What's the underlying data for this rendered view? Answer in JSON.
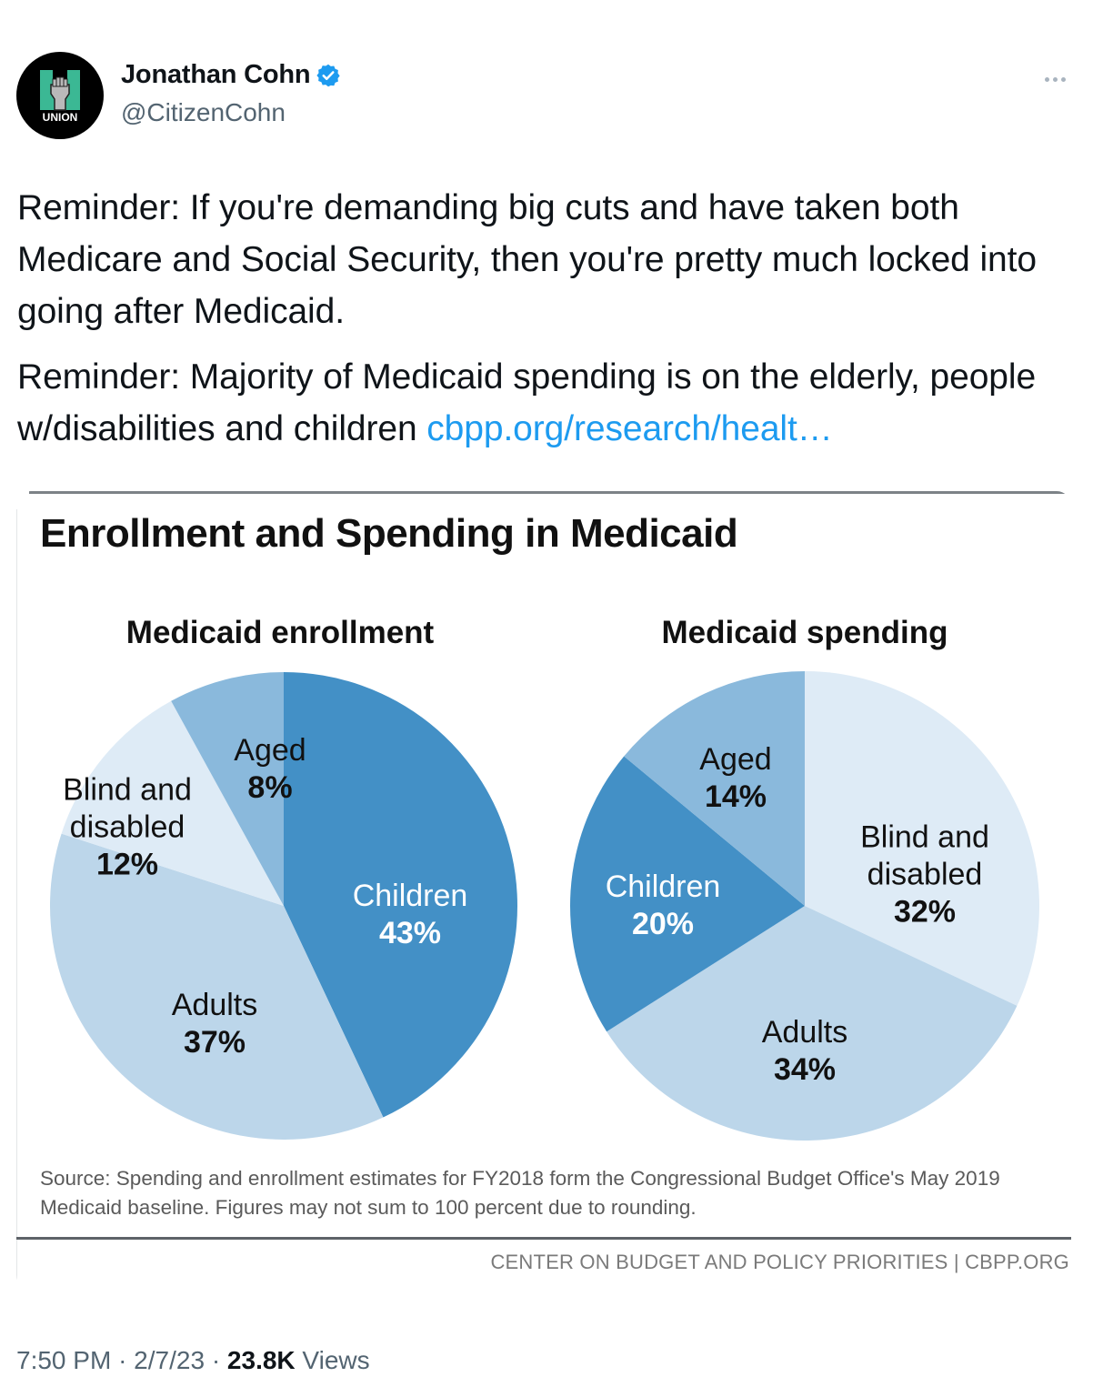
{
  "author": {
    "display_name": "Jonathan Cohn",
    "handle": "@CitizenCohn",
    "verified": true,
    "avatar_text": "UNION",
    "avatar_icon": "raised-fist-icon"
  },
  "more_menu_icon": "more-horizontal-icon",
  "tweet": {
    "paragraphs": [
      "Reminder: If you're demanding big cuts and have taken both Medicare and Social Security, then you're pretty much locked into going after Medicaid.",
      "Reminder: Majority of Medicaid spending is on the elderly, people w/disabilities and children "
    ],
    "link_text": "cbpp.org/research/healt…"
  },
  "meta": {
    "time": "7:50 PM",
    "separator": "·",
    "date": "2/7/23",
    "views_count": "23.8K",
    "views_label": "Views"
  },
  "colors": {
    "link": "#1d9bf0",
    "verified": "#1d9bf0",
    "children": "#4390c6",
    "adults": "#bcd6ea",
    "blind_disabled": "#deebf6",
    "aged": "#8ab9dc",
    "avatar_green": "#3bb894"
  },
  "chart_data": [
    {
      "type": "pie",
      "title": "Medicaid enrollment",
      "figure_title": "Enrollment and Spending in Medicaid",
      "start": "12 o'clock, clockwise",
      "slices": [
        {
          "label": "Children",
          "value": 43,
          "display": "43%",
          "color_key": "children",
          "label_color": "#ffffff"
        },
        {
          "label": "Adults",
          "value": 37,
          "display": "37%",
          "color_key": "adults",
          "label_color": "#111111"
        },
        {
          "label": "Blind and disabled",
          "label_lines": [
            "Blind and",
            "disabled"
          ],
          "value": 12,
          "display": "12%",
          "color_key": "blind_disabled",
          "label_color": "#111111"
        },
        {
          "label": "Aged",
          "value": 8,
          "display": "8%",
          "color_key": "aged",
          "label_color": "#111111"
        }
      ]
    },
    {
      "type": "pie",
      "title": "Medicaid spending",
      "start": "12 o'clock, clockwise",
      "slices": [
        {
          "label": "Blind and disabled",
          "label_lines": [
            "Blind and",
            "disabled"
          ],
          "value": 32,
          "display": "32%",
          "color_key": "blind_disabled",
          "label_color": "#111111"
        },
        {
          "label": "Adults",
          "value": 34,
          "display": "34%",
          "color_key": "adults",
          "label_color": "#111111"
        },
        {
          "label": "Children",
          "value": 20,
          "display": "20%",
          "color_key": "children",
          "label_color": "#ffffff"
        },
        {
          "label": "Aged",
          "value": 14,
          "display": "14%",
          "color_key": "aged",
          "label_color": "#111111"
        }
      ]
    }
  ],
  "chart_text": {
    "title": "Enrollment and Spending in Medicaid",
    "source": "Source: Spending and enrollment estimates for FY2018 form the Congressional Budget Office's May 2019 Medicaid baseline. Figures may not sum to 100 percent due to rounding.",
    "org": "CENTER ON BUDGET AND POLICY PRIORITIES | CBPP.ORG"
  }
}
